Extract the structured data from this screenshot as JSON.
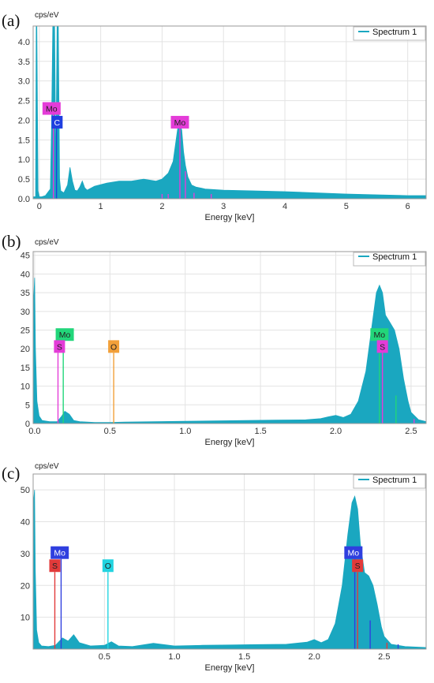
{
  "panels": [
    {
      "letter": "(a)",
      "chart_data": {
        "type": "area",
        "xlabel": "Energy [keV]",
        "ylabel": "cps/eV",
        "legend": "Spectrum 1",
        "legend_position": "top-right",
        "grid": true,
        "xlim": [
          -0.1,
          6.3
        ],
        "ylim": [
          0,
          4.4
        ],
        "xticks": [
          0,
          1,
          2,
          3,
          4,
          5,
          6
        ],
        "yticks": [
          0.0,
          0.5,
          1.0,
          1.5,
          2.0,
          2.5,
          3.0,
          3.5,
          4.0
        ],
        "ytick_labels": [
          "0.0",
          "0.5",
          "1.0",
          "1.5",
          "2.0",
          "2.5",
          "3.0",
          "3.5",
          "4.0"
        ],
        "series_color": "#1aa7c0",
        "series": [
          {
            "x": [
              -0.1,
              -0.06,
              -0.05,
              -0.04,
              -0.02,
              0.0,
              0.04,
              0.1,
              0.18,
              0.2,
              0.22,
              0.25,
              0.27,
              0.29,
              0.31,
              0.33,
              0.35,
              0.4,
              0.46,
              0.5,
              0.54,
              0.58,
              0.62,
              0.66,
              0.7,
              0.74,
              0.78,
              0.9,
              1.1,
              1.3,
              1.5,
              1.7,
              1.9,
              2.0,
              2.1,
              2.18,
              2.22,
              2.26,
              2.29,
              2.32,
              2.35,
              2.38,
              2.42,
              2.48,
              2.55,
              2.7,
              3.0,
              3.5,
              4.0,
              4.5,
              5.0,
              5.5,
              6.0,
              6.3
            ],
            "y": [
              0.05,
              0.05,
              4.4,
              4.4,
              0.2,
              0.05,
              0.05,
              0.08,
              0.25,
              1.85,
              4.4,
              4.4,
              0.6,
              4.4,
              4.4,
              0.5,
              0.2,
              0.15,
              0.35,
              0.8,
              0.45,
              0.22,
              0.2,
              0.3,
              0.45,
              0.28,
              0.22,
              0.32,
              0.4,
              0.45,
              0.45,
              0.5,
              0.45,
              0.5,
              0.65,
              0.95,
              1.4,
              1.85,
              1.9,
              1.75,
              1.2,
              0.85,
              0.55,
              0.35,
              0.3,
              0.25,
              0.22,
              0.2,
              0.18,
              0.15,
              0.12,
              0.1,
              0.08,
              0.08
            ]
          }
        ],
        "markers": [
          {
            "label": "Mo",
            "x": 0.23,
            "lx": 0.2,
            "ly": 2.3,
            "bg": "#e43cd8",
            "fg": "#222",
            "color": "#e43cd8"
          },
          {
            "label": "C",
            "x": 0.28,
            "lx": 0.29,
            "ly": 1.95,
            "bg": "#1f3fe0",
            "fg": "#ffffff",
            "color": "#1f3fe0"
          },
          {
            "label": "Mo",
            "x": 2.29,
            "lx": 2.29,
            "ly": 1.95,
            "bg": "#e43cd8",
            "fg": "#222",
            "color": "#e43cd8"
          }
        ],
        "small_lines": [
          {
            "x": 2.0,
            "y": 0.12,
            "color": "#e43cd8"
          },
          {
            "x": 2.1,
            "y": 0.12,
            "color": "#e43cd8"
          },
          {
            "x": 2.38,
            "y": 0.7,
            "color": "#e43cd8"
          },
          {
            "x": 2.52,
            "y": 0.15,
            "color": "#e43cd8"
          },
          {
            "x": 2.8,
            "y": 0.12,
            "color": "#e43cd8"
          }
        ]
      }
    },
    {
      "letter": "(b)",
      "chart_data": {
        "type": "area",
        "xlabel": "Energy [keV]",
        "ylabel": "cps/eV",
        "legend": "Spectrum 1",
        "legend_position": "top-right",
        "grid": true,
        "xlim": [
          -0.01,
          2.6
        ],
        "ylim": [
          0,
          46
        ],
        "xticks": [
          0.0,
          0.5,
          1.0,
          1.5,
          2.0,
          2.5
        ],
        "xtick_labels": [
          "0.0",
          "0.5",
          "1.0",
          "1.5",
          "2.0",
          "2.5"
        ],
        "yticks": [
          0,
          5,
          10,
          15,
          20,
          25,
          30,
          35,
          40,
          45
        ],
        "ytick_labels": [
          "0",
          "5",
          "10",
          "15",
          "20",
          "25",
          "30",
          "35",
          "40",
          "45"
        ],
        "series_color": "#1aa7c0",
        "series": [
          {
            "x": [
              -0.01,
              0.0,
              0.005,
              0.015,
              0.03,
              0.05,
              0.1,
              0.15,
              0.18,
              0.2,
              0.23,
              0.26,
              0.3,
              0.4,
              0.5,
              0.6,
              0.8,
              1.0,
              1.2,
              1.4,
              1.6,
              1.8,
              1.9,
              1.95,
              2.0,
              2.05,
              2.1,
              2.15,
              2.2,
              2.24,
              2.27,
              2.29,
              2.31,
              2.33,
              2.36,
              2.39,
              2.42,
              2.45,
              2.48,
              2.5,
              2.55,
              2.6
            ],
            "y": [
              30,
              39,
              20,
              6,
              2,
              0.8,
              0.5,
              0.5,
              2,
              3.3,
              2.5,
              0.8,
              0.5,
              0.3,
              0.3,
              0.4,
              0.5,
              0.6,
              0.7,
              0.8,
              0.9,
              1.0,
              1.3,
              1.8,
              2.2,
              1.6,
              2.5,
              6,
              14,
              26,
              35,
              37,
              35,
              29,
              27,
              25,
              20,
              12,
              6,
              3,
              1,
              0.5
            ]
          }
        ],
        "markers": [
          {
            "label": "Mo",
            "x": 0.19,
            "lx": 0.2,
            "ly": 23.8,
            "bg": "#22d67a",
            "fg": "#222",
            "color": "#22d67a"
          },
          {
            "label": "S",
            "x": 0.155,
            "lx": 0.165,
            "ly": 20.6,
            "bg": "#e43cd8",
            "fg": "#222",
            "color": "#e43cd8"
          },
          {
            "label": "O",
            "x": 0.525,
            "lx": 0.525,
            "ly": 20.6,
            "bg": "#f2a03a",
            "fg": "#222",
            "color": "#f2a03a"
          },
          {
            "label": "Mo",
            "x": 2.29,
            "lx": 2.29,
            "ly": 23.8,
            "bg": "#22d67a",
            "fg": "#222",
            "color": "#22d67a"
          },
          {
            "label": "S",
            "x": 2.31,
            "lx": 2.31,
            "ly": 20.6,
            "bg": "#e43cd8",
            "fg": "#222",
            "color": "#e43cd8"
          }
        ],
        "small_lines": [
          {
            "x": 2.4,
            "y": 7.5,
            "color": "#22d67a"
          },
          {
            "x": 2.52,
            "y": 1.2,
            "color": "#e43cd8"
          }
        ]
      }
    },
    {
      "letter": "(c)",
      "chart_data": {
        "type": "area",
        "xlabel": "Energy [keV]",
        "ylabel": "cps/eV",
        "legend": "Spectrum 1",
        "legend_position": "top-right",
        "grid": true,
        "xlim": [
          -0.01,
          2.8
        ],
        "ylim": [
          0,
          55
        ],
        "xticks": [
          0.5,
          1.0,
          1.5,
          2.0,
          2.5
        ],
        "xtick_labels": [
          "0.5",
          "1.0",
          "1.5",
          "2.0",
          "2.5"
        ],
        "yticks": [
          10,
          20,
          30,
          40,
          50
        ],
        "ytick_labels": [
          "10",
          "20",
          "30",
          "40",
          "50"
        ],
        "series_color": "#1aa7c0",
        "series": [
          {
            "x": [
              -0.01,
              0.0,
              0.005,
              0.015,
              0.03,
              0.05,
              0.1,
              0.15,
              0.2,
              0.24,
              0.28,
              0.32,
              0.4,
              0.5,
              0.55,
              0.6,
              0.7,
              0.85,
              1.0,
              1.2,
              1.4,
              1.6,
              1.8,
              1.95,
              2.0,
              2.05,
              2.1,
              2.15,
              2.2,
              2.24,
              2.27,
              2.29,
              2.31,
              2.33,
              2.36,
              2.39,
              2.42,
              2.45,
              2.48,
              2.5,
              2.55,
              2.65,
              2.8
            ],
            "y": [
              45,
              50,
              25,
              6,
              2,
              1,
              0.8,
              1.2,
              3.5,
              2.5,
              4.5,
              2,
              1,
              1.2,
              2.3,
              1,
              0.8,
              1.8,
              1,
              1.2,
              1.3,
              1.4,
              1.5,
              2.2,
              3,
              2,
              3,
              8,
              20,
              36,
              46,
              48,
              44,
              33,
              24,
              23,
              20,
              14,
              7,
              4,
              1.5,
              0.8,
              0.5
            ]
          }
        ],
        "markers": [
          {
            "label": "Mo",
            "x": 0.19,
            "lx": 0.18,
            "ly": 30.3,
            "bg": "#2f3fdf",
            "fg": "#ffffff",
            "color": "#2f3fdf"
          },
          {
            "label": "S",
            "x": 0.145,
            "lx": 0.145,
            "ly": 26.2,
            "bg": "#e23a3a",
            "fg": "#222",
            "color": "#e23a3a"
          },
          {
            "label": "O",
            "x": 0.525,
            "lx": 0.525,
            "ly": 26.2,
            "bg": "#22d4e0",
            "fg": "#222",
            "color": "#22d4e0"
          },
          {
            "label": "Mo",
            "x": 2.29,
            "lx": 2.28,
            "ly": 30.3,
            "bg": "#2f3fdf",
            "fg": "#ffffff",
            "color": "#2f3fdf"
          },
          {
            "label": "S",
            "x": 2.31,
            "lx": 2.31,
            "ly": 26.2,
            "bg": "#e23a3a",
            "fg": "#222",
            "color": "#e23a3a"
          }
        ],
        "small_lines": [
          {
            "x": 2.4,
            "y": 9,
            "color": "#2f3fdf"
          },
          {
            "x": 2.52,
            "y": 2,
            "color": "#e23a3a"
          },
          {
            "x": 2.6,
            "y": 1.5,
            "color": "#2f3fdf"
          }
        ]
      }
    }
  ]
}
